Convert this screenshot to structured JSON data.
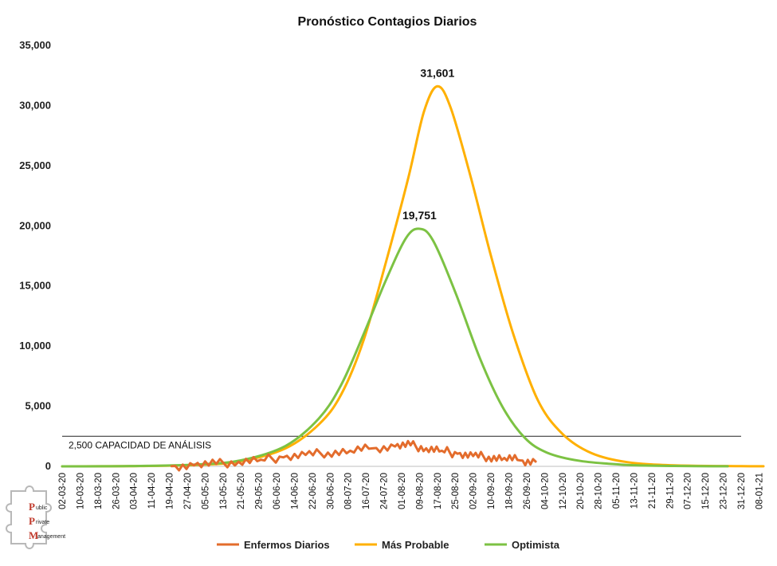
{
  "chart_data": {
    "type": "line",
    "title": "Pronóstico Contagios Diarios",
    "xlabel": "",
    "ylabel": "",
    "ylim": [
      0,
      35000
    ],
    "yticks": [
      0,
      5000,
      10000,
      15000,
      20000,
      25000,
      30000,
      35000
    ],
    "ytick_labels": [
      "0",
      "5,000",
      "10,000",
      "15,000",
      "20,000",
      "25,000",
      "30,000",
      "35,000"
    ],
    "x_start": "2020-03-02",
    "x_end": "2021-01-10",
    "x_tick_labels": [
      "02-03-20",
      "10-03-20",
      "18-03-20",
      "26-03-20",
      "03-04-20",
      "11-04-20",
      "19-04-20",
      "27-04-20",
      "05-05-20",
      "13-05-20",
      "21-05-20",
      "29-05-20",
      "06-06-20",
      "14-06-20",
      "22-06-20",
      "30-06-20",
      "08-07-20",
      "16-07-20",
      "24-07-20",
      "01-08-20",
      "09-08-20",
      "17-08-20",
      "25-08-20",
      "02-09-20",
      "10-09-20",
      "18-09-20",
      "26-09-20",
      "04-10-20",
      "12-10-20",
      "20-10-20",
      "28-10-20",
      "05-11-20",
      "13-11-20",
      "21-11-20",
      "29-11-20",
      "07-12-20",
      "15-12-20",
      "23-12-20",
      "31-12-20",
      "08-01-21"
    ],
    "legend_position": "bottom",
    "series": [
      {
        "name": "Enfermos Diarios",
        "color": "#E36C2C",
        "points": [
          [
            "2020-04-20",
            20
          ],
          [
            "2020-04-30",
            80
          ],
          [
            "2020-05-10",
            200
          ],
          [
            "2020-05-20",
            380
          ],
          [
            "2020-05-30",
            550
          ],
          [
            "2020-06-09",
            750
          ],
          [
            "2020-06-19",
            950
          ],
          [
            "2020-06-29",
            1150
          ],
          [
            "2020-07-09",
            1300
          ],
          [
            "2020-07-19",
            1500
          ],
          [
            "2020-07-29",
            1650
          ],
          [
            "2020-08-05",
            1750
          ],
          [
            "2020-08-12",
            1500
          ],
          [
            "2020-08-19",
            1300
          ],
          [
            "2020-08-26",
            1050
          ],
          [
            "2020-09-02",
            850
          ],
          [
            "2020-09-09",
            800
          ],
          [
            "2020-09-16",
            700
          ],
          [
            "2020-09-23",
            500
          ],
          [
            "2020-09-30",
            400
          ]
        ]
      },
      {
        "name": "Más Probable",
        "color": "#FFB000",
        "points": [
          [
            "2020-03-02",
            3
          ],
          [
            "2020-04-01",
            20
          ],
          [
            "2020-05-01",
            120
          ],
          [
            "2020-05-21",
            420
          ],
          [
            "2020-06-10",
            1500
          ],
          [
            "2020-06-25",
            3500
          ],
          [
            "2020-07-05",
            6000
          ],
          [
            "2020-07-15",
            10500
          ],
          [
            "2020-07-25",
            17000
          ],
          [
            "2020-08-04",
            24000
          ],
          [
            "2020-08-11",
            29500
          ],
          [
            "2020-08-17",
            31601
          ],
          [
            "2020-08-23",
            29800
          ],
          [
            "2020-09-01",
            24000
          ],
          [
            "2020-09-10",
            17500
          ],
          [
            "2020-09-20",
            11000
          ],
          [
            "2020-10-01",
            5500
          ],
          [
            "2020-10-12",
            2700
          ],
          [
            "2020-10-25",
            1100
          ],
          [
            "2020-11-10",
            350
          ],
          [
            "2020-12-01",
            80
          ],
          [
            "2020-12-31",
            15
          ],
          [
            "2021-01-10",
            5
          ]
        ]
      },
      {
        "name": "Optimista",
        "color": "#7CC243",
        "points": [
          [
            "2020-03-02",
            3
          ],
          [
            "2020-04-01",
            25
          ],
          [
            "2020-05-01",
            150
          ],
          [
            "2020-05-21",
            500
          ],
          [
            "2020-06-10",
            1700
          ],
          [
            "2020-06-25",
            4000
          ],
          [
            "2020-07-05",
            6800
          ],
          [
            "2020-07-15",
            11000
          ],
          [
            "2020-07-25",
            15500
          ],
          [
            "2020-08-03",
            19000
          ],
          [
            "2020-08-09",
            19751
          ],
          [
            "2020-08-15",
            18800
          ],
          [
            "2020-08-25",
            14500
          ],
          [
            "2020-09-05",
            9000
          ],
          [
            "2020-09-15",
            5000
          ],
          [
            "2020-09-25",
            2400
          ],
          [
            "2020-10-05",
            1150
          ],
          [
            "2020-10-20",
            450
          ],
          [
            "2020-11-10",
            120
          ],
          [
            "2020-12-01",
            30
          ],
          [
            "2020-12-25",
            5
          ]
        ]
      }
    ],
    "data_labels": [
      {
        "date": "2020-08-17",
        "value": 31601,
        "text": "31,601"
      },
      {
        "date": "2020-08-09",
        "value": 19751,
        "text": "19,751"
      }
    ],
    "reference_line": {
      "value": 2500,
      "label": "2,500 CAPACIDAD DE ANÁLISIS",
      "from": "2020-03-02",
      "to": "2020-12-31"
    }
  },
  "logo": {
    "letters": [
      "P",
      "P",
      "M"
    ],
    "words": [
      "ublic",
      "rivate",
      "anagement"
    ]
  }
}
